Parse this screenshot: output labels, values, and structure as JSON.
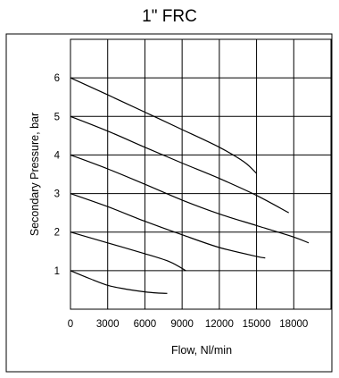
{
  "chart_data": {
    "type": "line",
    "title": "1\" FRC",
    "xlabel": "Flow, Nl/min",
    "ylabel": "Secondary Pressure, bar",
    "xlim": [
      0,
      21000
    ],
    "ylim": [
      0,
      7
    ],
    "xticks": [
      0,
      3000,
      6000,
      9000,
      12000,
      15000,
      18000
    ],
    "xtick_labels": [
      "0",
      "3000",
      "6000",
      "9000",
      "12000",
      "15000",
      "18000"
    ],
    "yticks": [
      1,
      2,
      3,
      4,
      5,
      6
    ],
    "ytick_labels": [
      "1",
      "2",
      "3",
      "4",
      "5",
      "6"
    ],
    "grid": true,
    "series": [
      {
        "x": [
          0,
          1500,
          3000,
          4500,
          6000,
          7000,
          7800
        ],
        "y": [
          1.0,
          0.8,
          0.62,
          0.52,
          0.45,
          0.42,
          0.41
        ]
      },
      {
        "x": [
          0,
          3000,
          6000,
          8000,
          9300
        ],
        "y": [
          2.0,
          1.72,
          1.44,
          1.23,
          1.0
        ]
      },
      {
        "x": [
          0,
          3000,
          6000,
          9000,
          12000,
          15000,
          15700
        ],
        "y": [
          3.0,
          2.66,
          2.28,
          1.93,
          1.6,
          1.37,
          1.33
        ]
      },
      {
        "x": [
          0,
          3000,
          6000,
          9000,
          12000,
          15000,
          18000,
          19200
        ],
        "y": [
          4.0,
          3.64,
          3.24,
          2.83,
          2.47,
          2.17,
          1.87,
          1.72
        ]
      },
      {
        "x": [
          0,
          3000,
          6000,
          9000,
          12000,
          15000,
          17600
        ],
        "y": [
          5.0,
          4.62,
          4.2,
          3.79,
          3.39,
          2.95,
          2.5
        ]
      },
      {
        "x": [
          0,
          3000,
          6000,
          9000,
          12000,
          14000,
          15000
        ],
        "y": [
          6.0,
          5.56,
          5.11,
          4.66,
          4.2,
          3.82,
          3.52
        ]
      }
    ]
  }
}
